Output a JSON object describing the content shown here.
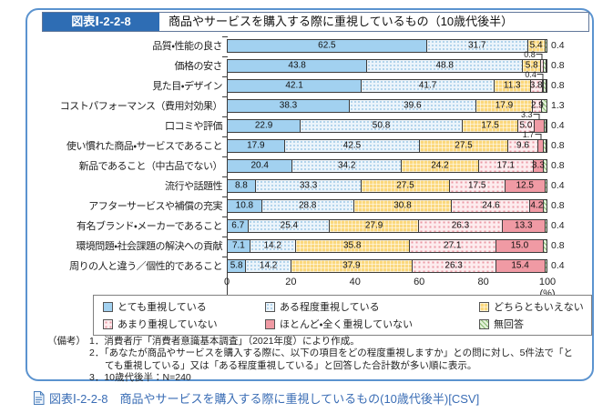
{
  "figure": {
    "tag": "図表Ⅰ-2-2-8",
    "title": "商品やサービスを購入する際に重視しているもの（10歳代後半）"
  },
  "chart_data": {
    "type": "bar",
    "stacked": true,
    "orientation": "horizontal",
    "unit": "%",
    "xlim": [
      0,
      100
    ],
    "x_ticks": [
      0,
      20,
      40,
      60,
      80,
      100
    ],
    "x_axis_unit_label": "(%)",
    "legend_position": "bottom",
    "series_names": [
      "とても重視している",
      "ある程度重視している",
      "どちらともいえない",
      "あまり重視していない",
      "ほとんど・全く重視していない",
      "無回答"
    ],
    "rows": [
      {
        "category": "品質・性能の良さ",
        "values": [
          62.5,
          31.7,
          5.4,
          0,
          0,
          0.4
        ]
      },
      {
        "category": "価格の安さ",
        "values": [
          43.8,
          48.8,
          5.8,
          0.8,
          0,
          0.8
        ],
        "callout": {
          "seg": 3,
          "label": "0.8"
        }
      },
      {
        "category": "見た目・デザイン",
        "values": [
          42.1,
          41.7,
          11.3,
          3.8,
          0.4,
          0.8
        ],
        "callout": {
          "seg": 4,
          "label": "0.4"
        }
      },
      {
        "category": "コストパフォーマンス（費用対効果）",
        "values": [
          38.3,
          39.6,
          17.9,
          2.9,
          0,
          1.3
        ]
      },
      {
        "category": "口コミや評価",
        "values": [
          22.9,
          50.8,
          17.5,
          5.0,
          3.3,
          0.4
        ],
        "callout": {
          "seg": 4,
          "label": "3.3"
        }
      },
      {
        "category": "使い慣れた商品・サービスであること",
        "values": [
          17.9,
          42.5,
          27.5,
          9.6,
          1.7,
          0.8
        ],
        "callout": {
          "seg": 4,
          "label": "1.7"
        }
      },
      {
        "category": "新品であること（中古品でない）",
        "values": [
          20.4,
          34.2,
          24.2,
          17.1,
          3.3,
          0.8
        ]
      },
      {
        "category": "流行や話題性",
        "values": [
          8.8,
          33.3,
          27.5,
          17.5,
          12.5,
          0.4
        ]
      },
      {
        "category": "アフターサービスや補償の充実",
        "values": [
          10.8,
          28.8,
          30.8,
          24.6,
          4.2,
          0.8
        ]
      },
      {
        "category": "有名ブランド・メーカーであること",
        "values": [
          6.7,
          25.4,
          27.9,
          26.3,
          13.3,
          0.4
        ]
      },
      {
        "category": "環境問題・社会課題の解決への貢献",
        "values": [
          7.1,
          14.2,
          35.8,
          27.1,
          15.0,
          0.8
        ]
      },
      {
        "category": "周りの人と違う／個性的であること",
        "values": [
          5.8,
          14.2,
          37.9,
          26.3,
          15.4,
          0.4
        ]
      }
    ]
  },
  "notes": {
    "label": "（備考）",
    "items": [
      "1．消費者庁「消費者意識基本調査」（2021年度）により作成。",
      "2．「あなたが商品やサービスを購入する際に、以下の項目をどの程度重視しますか」との問に対し、5件法で「とても重視している」又は「ある程度重視している」と回答した合計数が多い順に表示。",
      "3．10歳代後半：N=240"
    ]
  },
  "footer_link": {
    "text": "図表Ⅰ-2-2-8　商品やサービスを購入する際に重視しているもの(10歳代後半)[CSV]"
  },
  "colors": {
    "accent_blue": "#2e6db4",
    "box_border": "#5b93cf",
    "link_blue": "#3a6db5",
    "series": [
      "#a2d1f0",
      "#ebf4fb",
      "#fbd87c",
      "#fdecee",
      "#f09aa4",
      "#e2f0d8"
    ]
  }
}
